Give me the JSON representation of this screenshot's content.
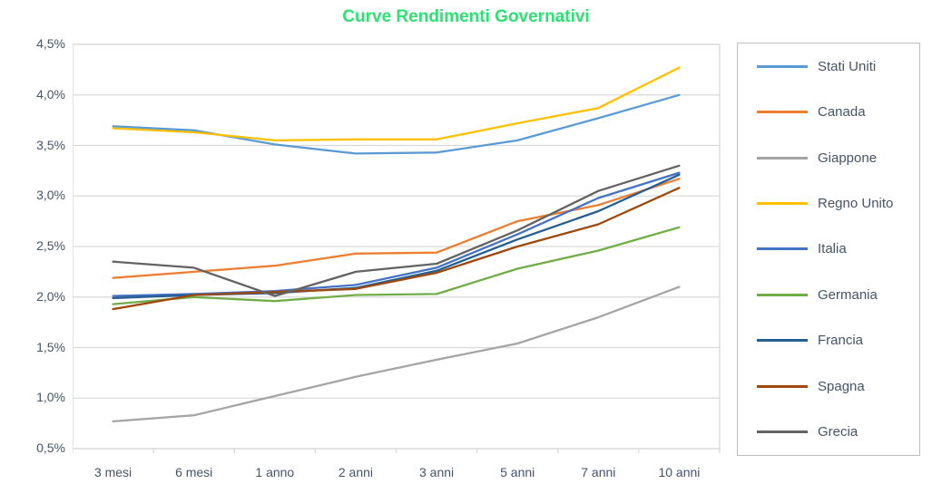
{
  "title": {
    "text": "Curve Rendimenti Governativi",
    "color": "#2BE272"
  },
  "colors": {
    "axis_text": "#44546A",
    "gridline": "#D9D9D9",
    "plot_border": "#D9D9D9",
    "legend_border": "#BFBFBF",
    "background": "#FFFFFF"
  },
  "chart_data": {
    "type": "line",
    "title": "Curve Rendimenti Governativi",
    "xlabel": "",
    "ylabel": "",
    "grid": true,
    "legend_position": "right",
    "ylim": [
      0.5,
      4.5
    ],
    "y_tick_step": 0.5,
    "y_tick_labels_top_to_bottom": [
      "4,5%",
      "4,0%",
      "3,5%",
      "3,0%",
      "2,5%",
      "2,0%",
      "1,5%",
      "1,0%",
      "0,5%"
    ],
    "categories": [
      "3 mesi",
      "6 mesi",
      "1 anno",
      "2 anni",
      "3 anni",
      "5 anni",
      "7 anni",
      "10 anni"
    ],
    "series": [
      {
        "name": "Stati Uniti",
        "color": "#5B9BD5",
        "values": [
          3.69,
          3.65,
          3.51,
          3.42,
          3.43,
          3.55,
          3.77,
          4.0
        ]
      },
      {
        "name": "Canada",
        "color": "#ED7D31",
        "values": [
          2.19,
          2.25,
          2.31,
          2.43,
          2.44,
          2.75,
          2.91,
          3.17
        ]
      },
      {
        "name": "Giappone",
        "color": "#A5A5A5",
        "values": [
          0.77,
          0.83,
          1.02,
          1.21,
          1.38,
          1.54,
          1.8,
          2.1
        ]
      },
      {
        "name": "Regno Unito",
        "color": "#FFC000",
        "values": [
          3.67,
          3.63,
          3.55,
          3.56,
          3.56,
          3.72,
          3.87,
          4.27
        ]
      },
      {
        "name": "Italia",
        "color": "#4472C4",
        "values": [
          2.01,
          2.03,
          2.06,
          2.12,
          2.29,
          2.62,
          2.98,
          3.23
        ]
      },
      {
        "name": "Germania",
        "color": "#70AD47",
        "values": [
          1.93,
          2.0,
          1.96,
          2.02,
          2.03,
          2.28,
          2.46,
          2.69
        ]
      },
      {
        "name": "Francia",
        "color": "#255E91",
        "values": [
          1.99,
          2.02,
          2.04,
          2.09,
          2.26,
          2.57,
          2.85,
          3.21
        ]
      },
      {
        "name": "Spagna",
        "color": "#9E480E",
        "values": [
          1.88,
          2.02,
          2.05,
          2.08,
          2.24,
          2.5,
          2.72,
          3.08
        ]
      },
      {
        "name": "Grecia",
        "color": "#636363",
        "values": [
          2.35,
          2.29,
          2.01,
          2.25,
          2.33,
          2.66,
          3.05,
          3.3
        ]
      }
    ]
  }
}
